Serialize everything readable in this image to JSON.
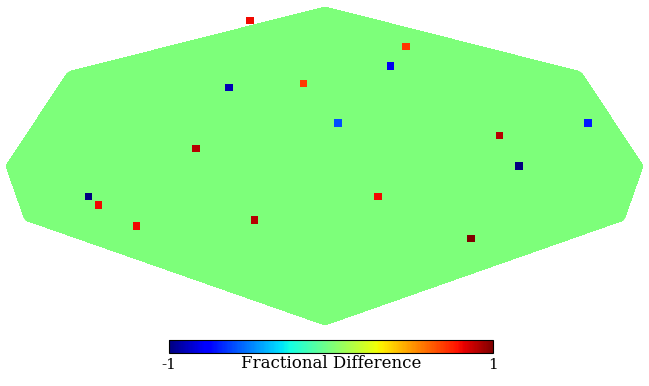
{
  "chart_data": {
    "type": "heatmap",
    "tick_labels": false,
    "grid": false,
    "cells": {
      "lon_edges": [
        -180,
        -90,
        0,
        90,
        180
      ],
      "lat_edges": [
        -90,
        -25,
        0,
        45,
        90
      ],
      "values": [
        [
          0,
          0,
          0,
          0
        ],
        [
          0,
          0,
          0,
          0
        ],
        [
          0,
          0,
          0,
          0
        ],
        [
          0,
          0,
          0,
          0
        ]
      ]
    },
    "sources": {
      "lon": [
        -136,
        -132,
        -62,
        110,
        93,
        101,
        -73,
        -104,
        48,
        -14,
        31,
        -42,
        -115,
        155,
        8,
        70
      ],
      "lat": [
        -14,
        -18,
        37,
        0,
        -34,
        14,
        8,
        76,
        48,
        39,
        -14,
        -25,
        -28,
        20,
        20,
        59
      ],
      "values": [
        -1,
        0.8,
        -0.9,
        -1,
        1,
        0.9,
        0.9,
        0.8,
        -0.8,
        0.7,
        0.8,
        0.9,
        0.8,
        -0.7,
        -0.6,
        0.7
      ]
    },
    "colorbar": {
      "label": "Fractional Difference",
      "range": [
        -1,
        1
      ],
      "ticks": [
        -1,
        1
      ]
    },
    "color": "jet"
  }
}
